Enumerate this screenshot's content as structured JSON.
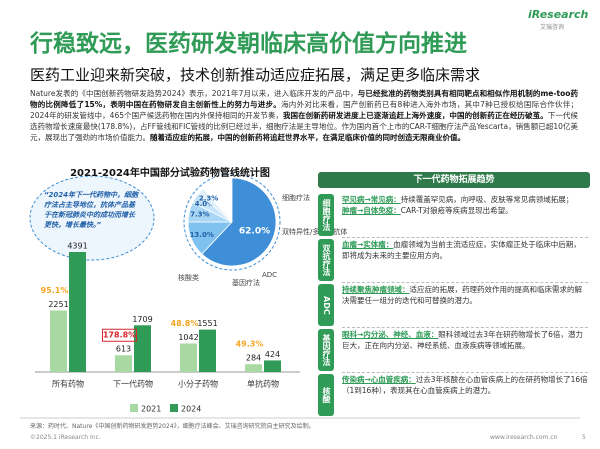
{
  "header": {
    "title": "行稳致远，医药研发朝临床高价值方向推进",
    "logo": "iResearch",
    "logo_sub": "艾瑞咨询",
    "subtitle": "医药工业迎来新突破，技术创新推动适应症拓展，满足更多临床需求"
  },
  "paragraph": [
    {
      "text": "Nature发表的《中国创新药物研发趋势2024》表示，2021年7月以来，进入临床开发的产品中，",
      "bold": false
    },
    {
      "text": "与已经批准的药物类别具有相同靶点和相似作用机制的me-too药物的比例降低了15%，表明中国在药物研发自主创新性上的努力与进步。",
      "bold": true
    },
    {
      "text": "海内外对比来看，国产创新药已有8种进入海外市场，其中7种已授权给国际合作伙伴；2024年的研发管线中，465个国产候选药物在国内外保持相同的开发节奏，",
      "bold": false
    },
    {
      "text": "我国在创新药研发进度上已逐渐追赶上海外速度，中国的创新药正在经历破茧。",
      "bold": true
    },
    {
      "text": "下一代候选药物增长速度最快(178.8%)，占FF管线和FIC管线的比例已经过半，细胞疗法是主导地位。作为国内首个上市的CAR-T细胞疗法产品Yescarta，销售额已超10亿美元，展现出了强劲的市场价值能力。",
      "bold": false
    },
    {
      "text": "随着适应症的拓展，中国的创新药将追赶世界水平，在满足临床价值的同时创造无限商业价值。",
      "bold": true
    }
  ],
  "chart_data": [
    {
      "type": "bar",
      "title": "2021-2024年中国部分试验药物管线统计图",
      "categories": [
        "所有药物",
        "下一代药物",
        "小分子药物",
        "单抗药物"
      ],
      "series": [
        {
          "name": "2021",
          "color": "#a9d9a3",
          "values": [
            2251,
            613,
            1042,
            284
          ]
        },
        {
          "name": "2024",
          "color": "#2f9b57",
          "values": [
            4391,
            1709,
            1551,
            424
          ]
        }
      ],
      "growth": {
        "values": [
          95.1,
          178.8,
          48.8,
          49.3
        ],
        "value_labels": [
          "95.1%",
          "178.8%",
          "48.8%",
          "49.3%"
        ],
        "color": "#f5a623",
        "highlight_color": "#d9262c"
      }
    },
    {
      "type": "pie",
      "categories": [
        "细胞疗法",
        "双特异性/多异性抗体",
        "ADC",
        "基因疗法",
        "核酸类"
      ],
      "values": [
        62.0,
        13.0,
        7.3,
        4.0,
        2.3
      ],
      "value_labels": [
        "62.0%",
        "13.0%",
        "7.3%",
        "4.0%",
        "2.3%"
      ],
      "colors": [
        "#3e8fd8",
        "#7fc1ef",
        "#a9d6f5",
        "#c7e4f8",
        "#dff0fb"
      ]
    }
  ],
  "callout": "“2024年下一代药物中，细胞疗法占主导地位，抗体产品基于在新冠肺炎中的成功而增长更快，增长最快。”",
  "trends": {
    "title": "下一代药物拓展趋势",
    "rows": [
      {
        "tag": "细胞疗法",
        "items": [
          {
            "head": "罕见病→常见病：",
            "text": "持续覆盖罕见病，向呼吸、皮肤等常见病领域拓展；"
          },
          {
            "head": "肿瘤→自体免疫：",
            "text": "CAR-T对狼疮等疾病显现出希望。"
          }
        ]
      },
      {
        "tag": "双抗疗法",
        "items": [
          {
            "head": "血瘤→实体瘤：",
            "text": "血瘤领域为当前主流适应症，实体瘤正处于临床中后期，即将成为未来的主要应用方向。"
          }
        ]
      },
      {
        "tag": "ADC",
        "items": [
          {
            "head": "持续聚焦肿瘤领域：",
            "text": "适应症的拓展，药理药效作用的提高和临床需求的解决需要任一组分的迭代和可替换的潜力。"
          }
        ]
      },
      {
        "tag": "基因疗法",
        "items": [
          {
            "head": "眼科→内分泌、神经、血液：",
            "text": "眼科领域过去3年在研药物增长了6倍，潜力巨大，正在向内分泌、神经系统、血液疾病等领域拓展。"
          }
        ]
      },
      {
        "tag": "核酸",
        "items": [
          {
            "head": "传染病→心血管疾病：",
            "text": "过去3年核酸在心血管疾病上的在研药物增长了16倍（1到16种），表现其在心血管疾病上的潜力。"
          }
        ]
      }
    ]
  },
  "footer": {
    "source": "来源：药时代、Nature《中国创新药物研发趋势2024》，细胞疗法峰会、艾瑞咨询研究院自主研究及绘制。",
    "copyright": "©2025.1 iResearch Inc.",
    "url": "www.iresearch.com.cn",
    "page": "5"
  }
}
